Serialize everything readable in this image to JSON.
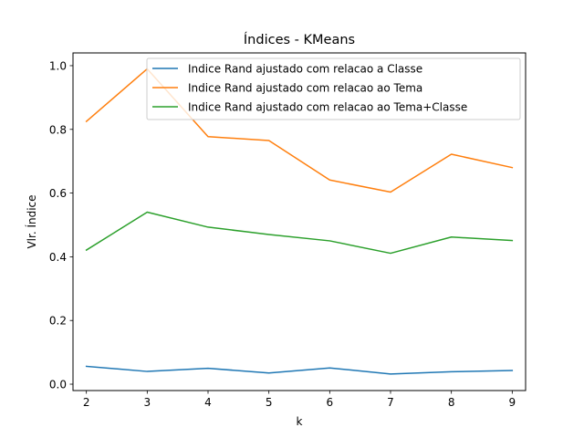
{
  "chart_data": {
    "type": "line",
    "title": "Índices - KMeans",
    "xlabel": "k",
    "ylabel": "Vlr. Índice",
    "x": [
      2,
      3,
      4,
      5,
      6,
      7,
      8,
      9
    ],
    "xlim": [
      1.78,
      9.22
    ],
    "ylim": [
      -0.02,
      1.04
    ],
    "xticks": [
      "2",
      "3",
      "4",
      "5",
      "6",
      "7",
      "8",
      "9"
    ],
    "yticks": [
      "0.0",
      "0.2",
      "0.4",
      "0.6",
      "0.8",
      "1.0"
    ],
    "grid": false,
    "legend_position": "top-right",
    "series": [
      {
        "name": "Indice Rand ajustado com relacao a Classe",
        "color": "#1f77b4",
        "values": [
          0.056,
          0.04,
          0.05,
          0.035,
          0.051,
          0.032,
          0.039,
          0.043
        ]
      },
      {
        "name": "Indice Rand ajustado com relacao ao Tema",
        "color": "#ff7f0e",
        "values": [
          0.825,
          0.99,
          0.777,
          0.765,
          0.641,
          0.603,
          0.722,
          0.68
        ]
      },
      {
        "name": "Indice Rand ajustado com relacao ao Tema+Classe",
        "color": "#2ca02c",
        "values": [
          0.421,
          0.54,
          0.493,
          0.47,
          0.45,
          0.411,
          0.462,
          0.451
        ]
      }
    ]
  }
}
